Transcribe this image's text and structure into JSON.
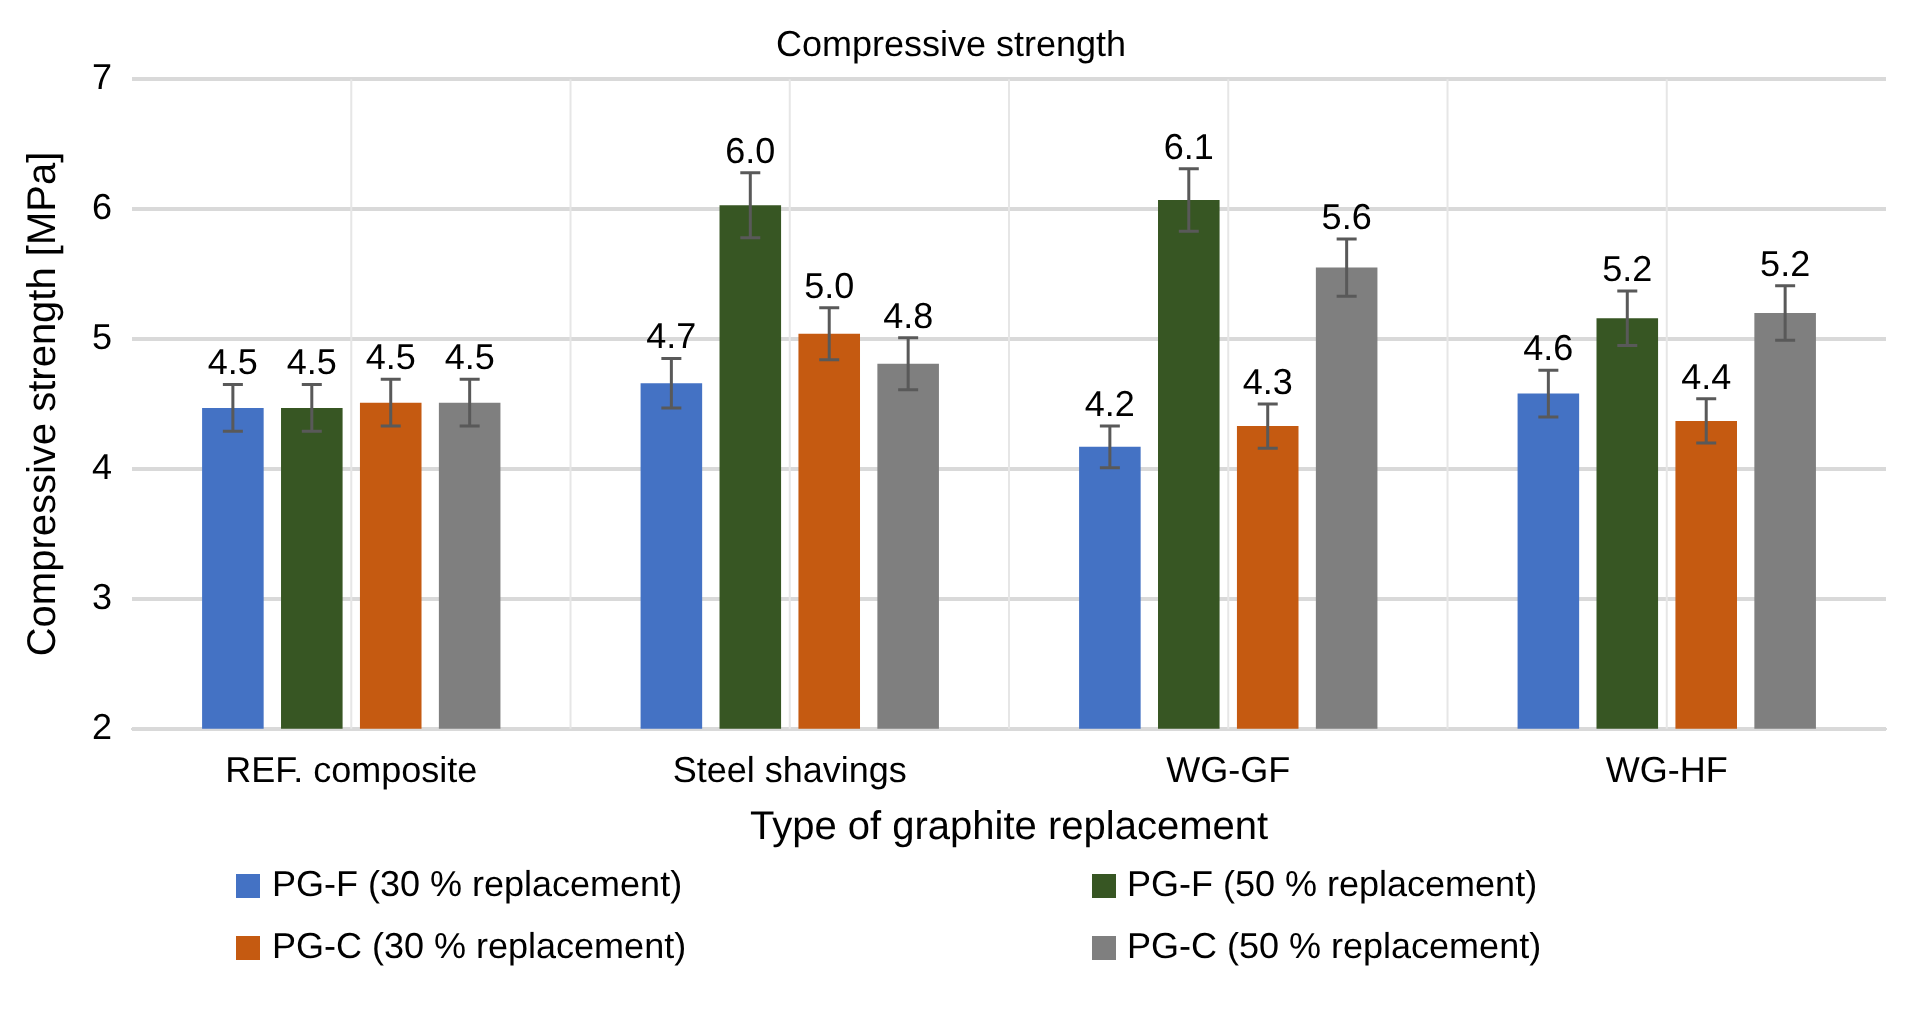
{
  "chart_data": {
    "type": "bar",
    "title": "Compressive strength",
    "xlabel": "Type of graphite replacement",
    "ylabel": "Compressive strength [MPa]",
    "categories": [
      "REF. composite",
      "Steel shavings",
      "WG-GF",
      "WG-HF"
    ],
    "series": [
      {
        "name": "PG-F (30 % replacement)",
        "color": "#4472c4",
        "values": [
          4.47,
          4.66,
          4.17,
          4.58
        ],
        "errors": [
          0.18,
          0.19,
          0.16,
          0.18
        ],
        "value_labels": [
          "4.5",
          "4.7",
          "4.2",
          "4.6"
        ]
      },
      {
        "name": "PG-F (50 % replacement)",
        "color": "#375623",
        "values": [
          4.47,
          6.03,
          6.07,
          5.16
        ],
        "errors": [
          0.18,
          0.25,
          0.24,
          0.21
        ],
        "value_labels": [
          "4.5",
          "6.0",
          "6.1",
          "5.2"
        ]
      },
      {
        "name": "PG-C (30 % replacement)",
        "color": "#c55a11",
        "values": [
          4.51,
          5.04,
          4.33,
          4.37
        ],
        "errors": [
          0.18,
          0.2,
          0.17,
          0.17
        ],
        "value_labels": [
          "4.5",
          "5.0",
          "4.3",
          "4.4"
        ]
      },
      {
        "name": "PG-C (50 % replacement)",
        "color": "#7f7f7f",
        "values": [
          4.51,
          4.81,
          5.55,
          5.2
        ],
        "errors": [
          0.18,
          0.2,
          0.22,
          0.21
        ],
        "value_labels": [
          "4.5",
          "4.8",
          "5.6",
          "5.2"
        ]
      }
    ],
    "ylim": [
      2,
      7
    ],
    "yticks": [
      2,
      3,
      4,
      5,
      6,
      7
    ],
    "grid": true,
    "legend": "bottom"
  }
}
